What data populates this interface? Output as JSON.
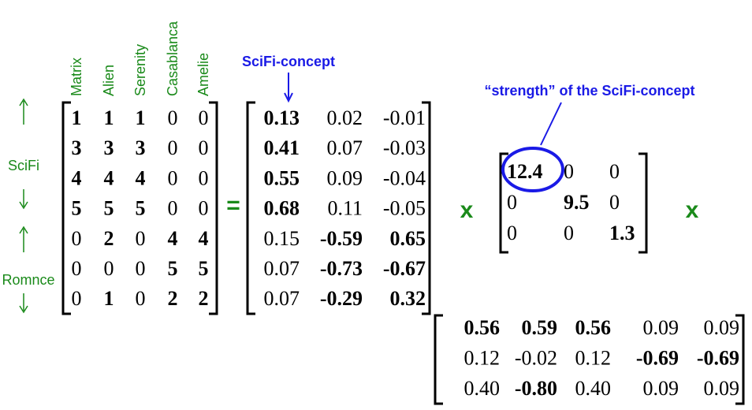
{
  "column_labels": [
    "Matrix",
    "Alien",
    "Serenity",
    "Casablanca",
    "Amelie"
  ],
  "row_labels": [
    "SciFi",
    "Romnce"
  ],
  "operators": [
    "=",
    "x",
    "x"
  ],
  "annotations": {
    "scifi_concept": "SciFi-concept",
    "strength": "“strength” of the SciFi-concept"
  },
  "matrices": {
    "A": {
      "rows": [
        [
          "1",
          "1",
          "1",
          "0",
          "0"
        ],
        [
          "3",
          "3",
          "3",
          "0",
          "0"
        ],
        [
          "4",
          "4",
          "4",
          "0",
          "0"
        ],
        [
          "5",
          "5",
          "5",
          "0",
          "0"
        ],
        [
          "0",
          "2",
          "0",
          "4",
          "4"
        ],
        [
          "0",
          "0",
          "0",
          "5",
          "5"
        ],
        [
          "0",
          "1",
          "0",
          "2",
          "2"
        ]
      ],
      "bold": [
        [
          1,
          1,
          1,
          0,
          0
        ],
        [
          1,
          1,
          1,
          0,
          0
        ],
        [
          1,
          1,
          1,
          0,
          0
        ],
        [
          1,
          1,
          1,
          0,
          0
        ],
        [
          0,
          1,
          0,
          1,
          1
        ],
        [
          0,
          0,
          0,
          1,
          1
        ],
        [
          0,
          1,
          0,
          1,
          1
        ]
      ]
    },
    "U": {
      "rows": [
        [
          "0.13",
          "0.02",
          "-0.01"
        ],
        [
          "0.41",
          "0.07",
          "-0.03"
        ],
        [
          "0.55",
          "0.09",
          "-0.04"
        ],
        [
          "0.68",
          "0.11",
          "-0.05"
        ],
        [
          "0.15",
          "-0.59",
          "0.65"
        ],
        [
          "0.07",
          "-0.73",
          "-0.67"
        ],
        [
          "0.07",
          "-0.29",
          "0.32"
        ]
      ],
      "bold": [
        [
          1,
          0,
          0
        ],
        [
          1,
          0,
          0
        ],
        [
          1,
          0,
          0
        ],
        [
          1,
          0,
          0
        ],
        [
          0,
          1,
          1
        ],
        [
          0,
          1,
          1
        ],
        [
          0,
          1,
          1
        ]
      ]
    },
    "Sigma": {
      "rows": [
        [
          "12.4",
          "0",
          "0"
        ],
        [
          "0",
          "9.5",
          "0"
        ],
        [
          "0",
          "0",
          "1.3"
        ]
      ],
      "bold": [
        [
          1,
          0,
          0
        ],
        [
          0,
          1,
          0
        ],
        [
          0,
          0,
          1
        ]
      ]
    },
    "VT": {
      "rows": [
        [
          "0.56",
          "0.59",
          "0.56",
          "0.09",
          "0.09"
        ],
        [
          "0.12",
          "-0.02",
          "0.12",
          "-0.69",
          "-0.69"
        ],
        [
          "0.40",
          "-0.80",
          "0.40",
          "0.09",
          "0.09"
        ]
      ],
      "bold": [
        [
          1,
          1,
          1,
          0,
          0
        ],
        [
          0,
          0,
          0,
          1,
          1
        ],
        [
          0,
          1,
          0,
          0,
          0
        ]
      ]
    }
  }
}
